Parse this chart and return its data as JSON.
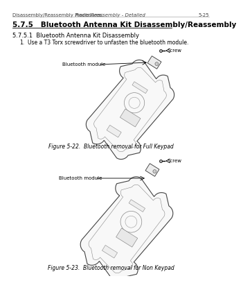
{
  "background_color": "#ffffff",
  "header_text_normal": "Disassembly/Reassembly Procedures: ",
  "header_text_italic": "Radio Reassembly - Detailed",
  "header_page": "5-25",
  "title_main": "5.7.5   Bluetooth Antenna Kit Disassembly/Reassembly",
  "title_sub": "5.7.5.1  Bluetooth Antenna Kit Disassembly",
  "step1_num": "1.",
  "step1_text": "Use a T3 Torx screwdriver to unfasten the bluetooth module.",
  "fig1_caption": "Figure 5-22.  Bluetooth removal for Full Keypad",
  "fig2_caption": "Figure 5-23.  Bluetooth removal for Non Keypad",
  "label_screw": "Screw",
  "label_bt_module": "Bluetooth module",
  "text_color": "#000000",
  "header_font_size": 5.0,
  "title_font_size": 7.5,
  "sub_font_size": 6.0,
  "body_font_size": 5.5,
  "caption_font_size": 5.5,
  "label_font_size": 5.0,
  "line_color": "#aaaaaa",
  "device_edge_color": "#444444",
  "device_face_color": "#f8f8f8",
  "inner_edge_color": "#777777"
}
